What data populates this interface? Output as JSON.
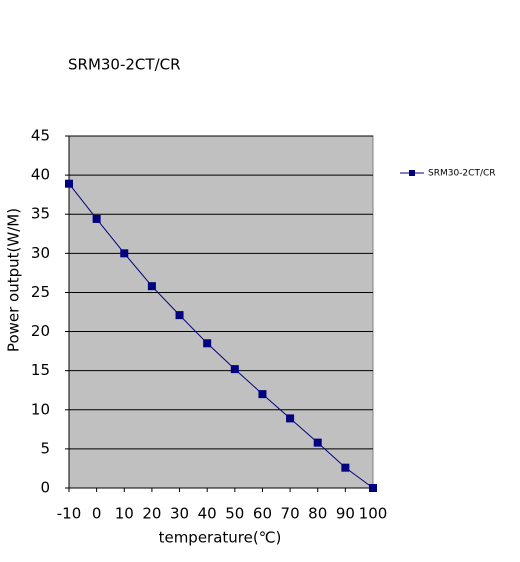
{
  "chart_data": {
    "type": "line",
    "title": "SRM30-2CT/CR",
    "x_label": "temperature(℃)",
    "y_label": "Power output(W/M)",
    "x": [
      -10,
      0,
      10,
      20,
      30,
      40,
      50,
      60,
      70,
      80,
      90,
      100
    ],
    "series": [
      {
        "name": "SRM30-2CT/CR",
        "color": "#000080",
        "values": [
          38.9,
          34.4,
          30.0,
          25.8,
          22.1,
          18.5,
          15.2,
          12.0,
          8.9,
          5.8,
          2.6,
          0
        ]
      }
    ],
    "xlim": [
      -10,
      100
    ],
    "xticks": [
      -10,
      0,
      10,
      20,
      30,
      40,
      50,
      60,
      70,
      80,
      90,
      100
    ],
    "ylim": [
      0,
      45
    ],
    "yticks": [
      0,
      5,
      10,
      15,
      20,
      25,
      30,
      35,
      40,
      45
    ],
    "grid": true,
    "legend": "right",
    "background": "#c0c0c0"
  }
}
